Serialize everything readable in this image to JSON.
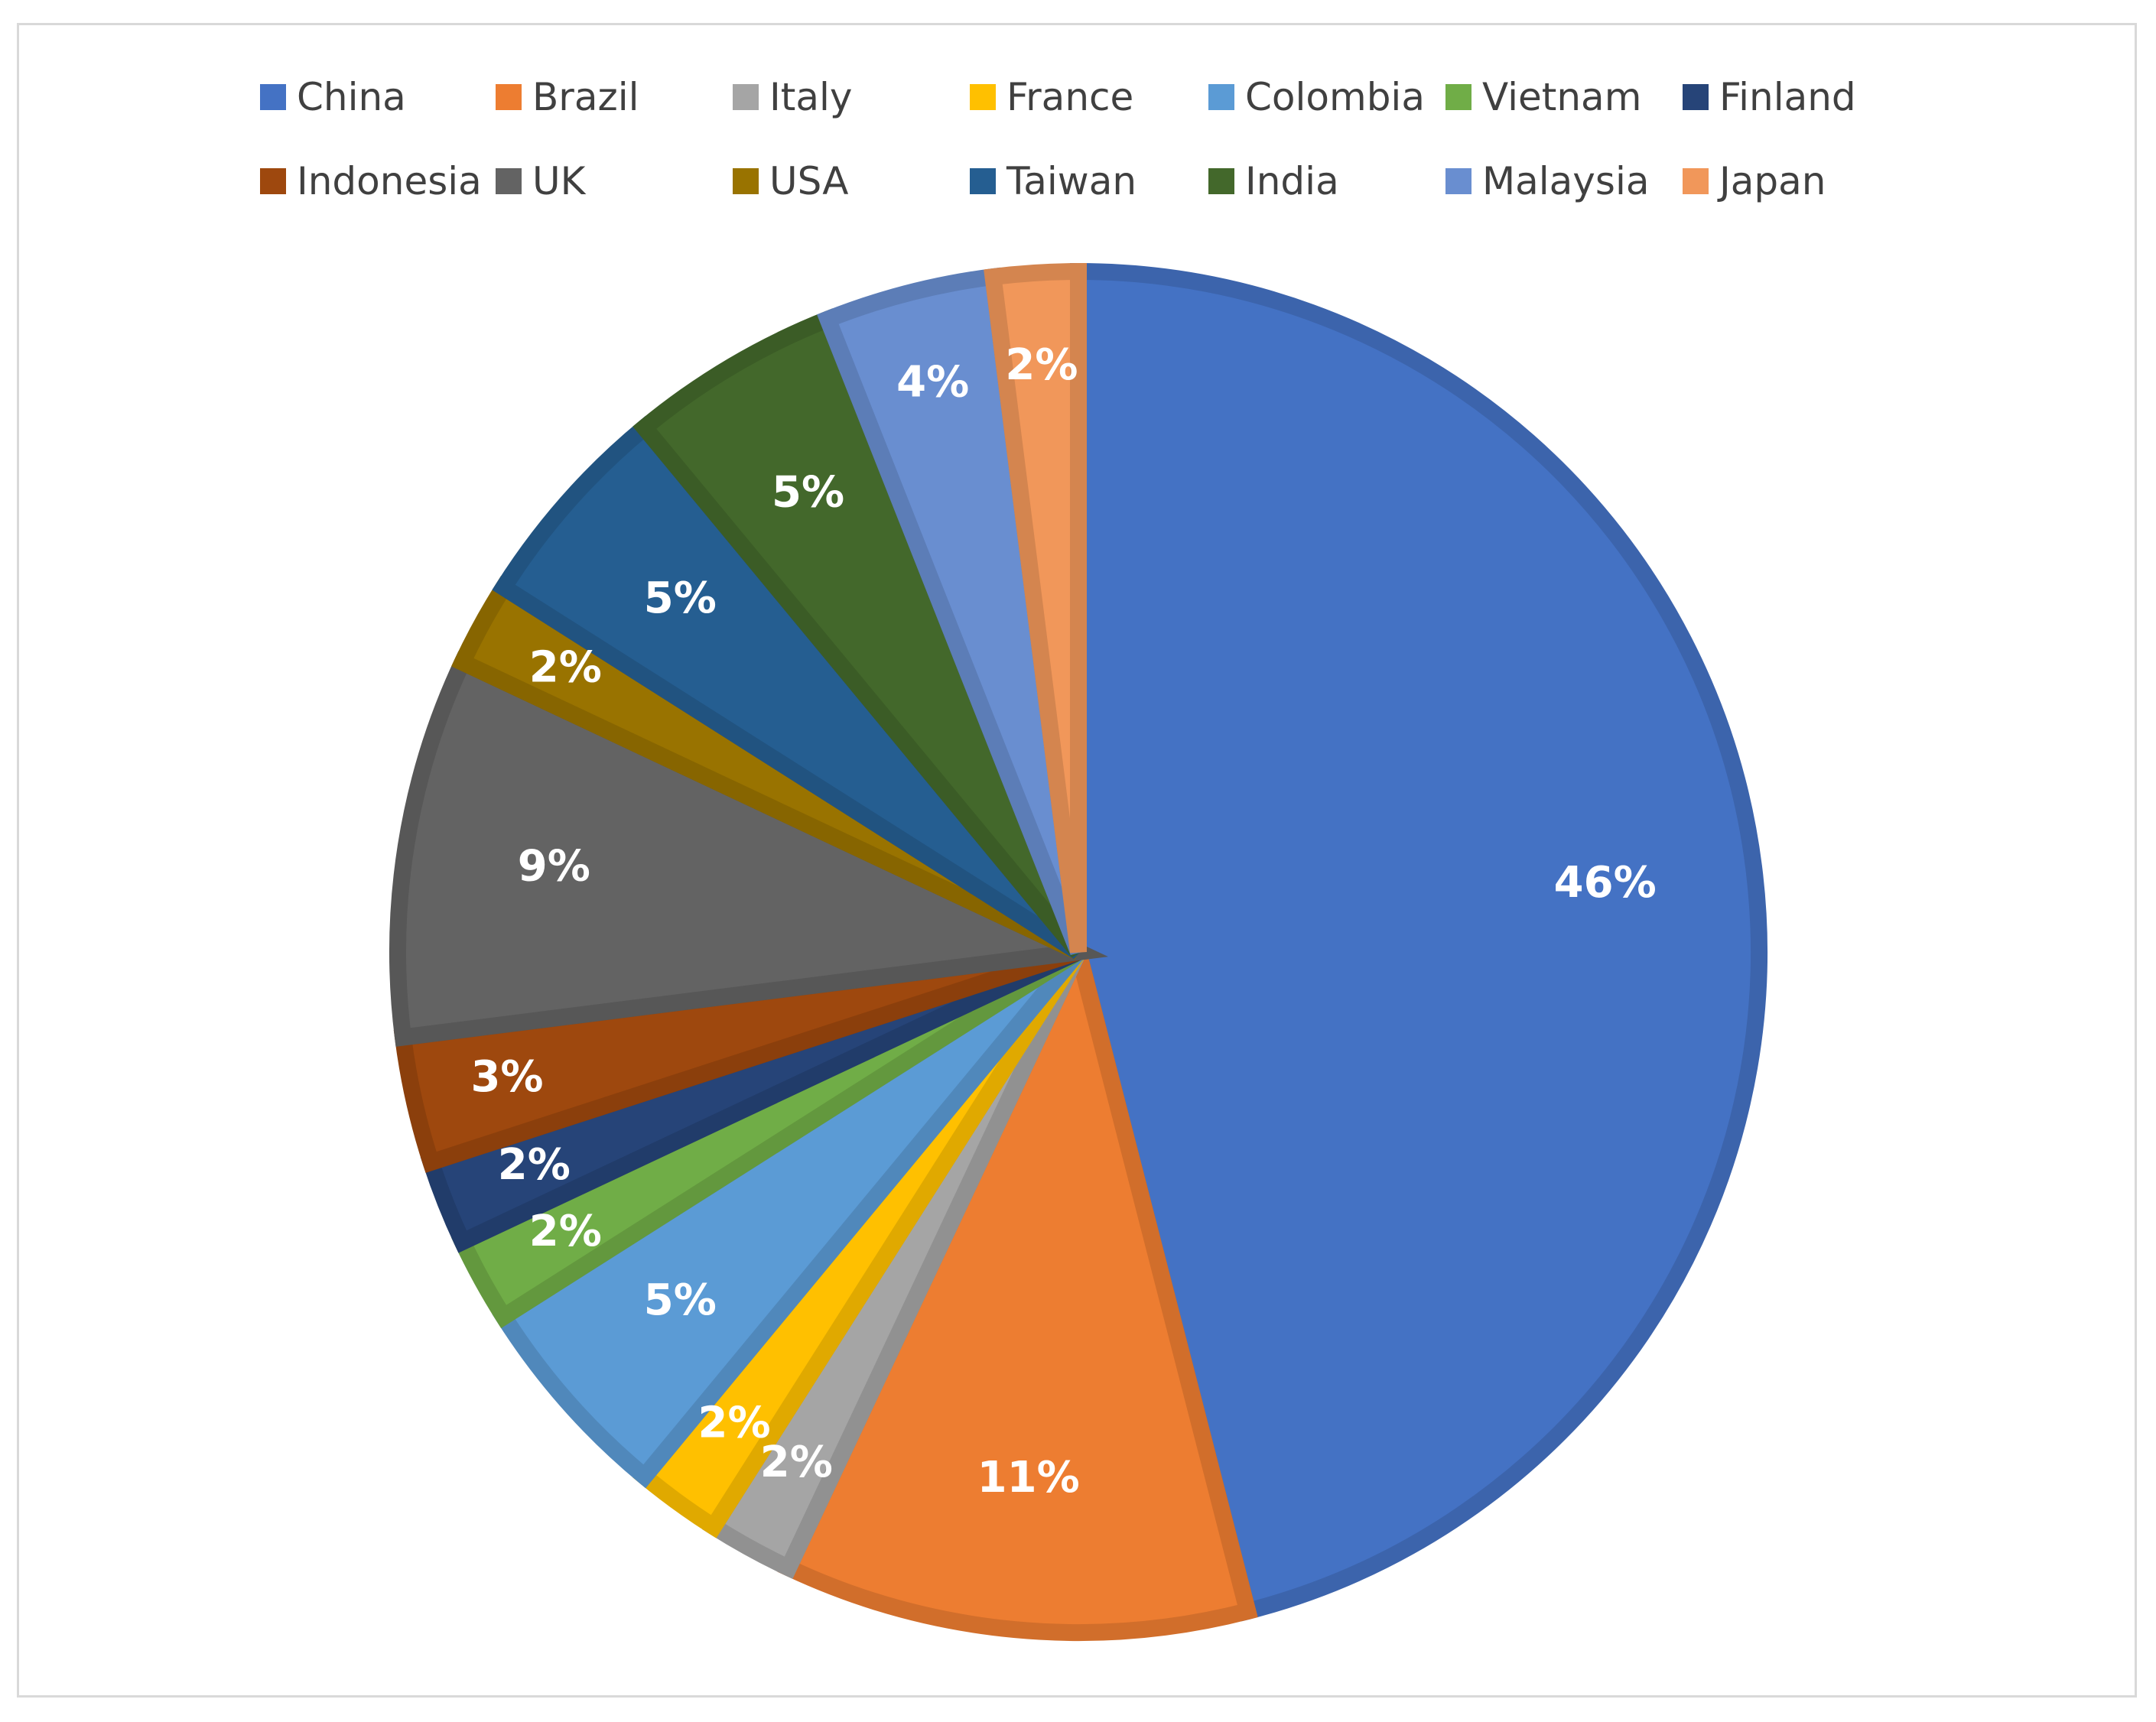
{
  "chart_data": {
    "type": "pie",
    "title": "",
    "legend_position": "top",
    "slices": [
      {
        "name": "China",
        "value": 46,
        "label": "46%",
        "color": "#4472c4"
      },
      {
        "name": "Brazil",
        "value": 11,
        "label": "11%",
        "color": "#ed7d31"
      },
      {
        "name": "Italy",
        "value": 2,
        "label": "2%",
        "color": "#a5a5a5"
      },
      {
        "name": "France",
        "value": 2,
        "label": "2%",
        "color": "#ffc000"
      },
      {
        "name": "Colombia",
        "value": 5,
        "label": "5%",
        "color": "#5b9bd5"
      },
      {
        "name": "Vietnam",
        "value": 2,
        "label": "2%",
        "color": "#70ad47"
      },
      {
        "name": "Finland",
        "value": 2,
        "label": "2%",
        "color": "#264478"
      },
      {
        "name": "Indonesia",
        "value": 3,
        "label": "3%",
        "color": "#9e480e"
      },
      {
        "name": "UK",
        "value": 9,
        "label": "9%",
        "color": "#636363"
      },
      {
        "name": "USA",
        "value": 2,
        "label": "2%",
        "color": "#997300"
      },
      {
        "name": "Taiwan",
        "value": 5,
        "label": "5%",
        "color": "#255e91"
      },
      {
        "name": "India",
        "value": 5,
        "label": "5%",
        "color": "#43682b"
      },
      {
        "name": "Malaysia",
        "value": 4,
        "label": "4%",
        "color": "#698ed0"
      },
      {
        "name": "Japan",
        "value": 2,
        "label": "2%",
        "color": "#f1975a"
      }
    ]
  }
}
